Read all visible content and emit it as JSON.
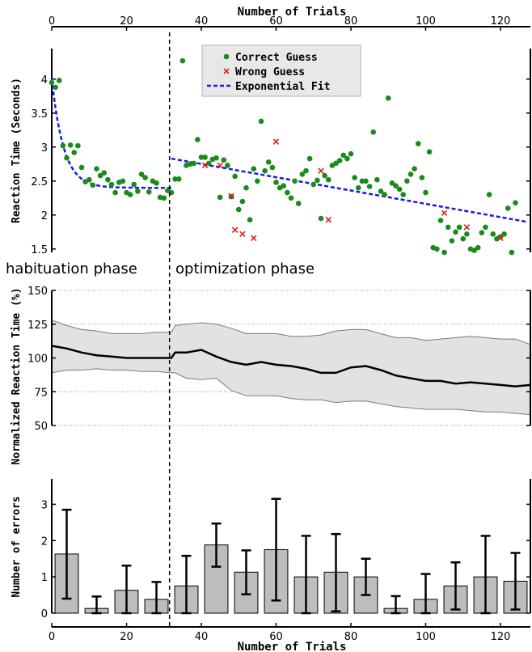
{
  "axis": {
    "top_xlabel": "Number of Trials",
    "bottom_xlabel": "Number of Trials",
    "x_ticks": [
      0,
      20,
      40,
      60,
      80,
      100,
      120
    ],
    "xlim": [
      0,
      128
    ]
  },
  "phases": {
    "habituation": "habituation phase",
    "optimization": "optimization phase",
    "boundary_trial": 31.5
  },
  "colors": {
    "correct": "#1a8a1a",
    "wrong": "#e02020",
    "fit": "#1a1ae0",
    "band": "#e2e2e2",
    "bar": "#bdbdbd"
  },
  "chart_data": [
    {
      "type": "scatter",
      "ylabel": "Reaction Time (Seconds)",
      "ylim": [
        1.45,
        4.45
      ],
      "y_ticks": [
        1.5,
        2,
        2.5,
        3,
        3.5,
        4
      ],
      "y_tick_labels": [
        "1.5",
        "2",
        "2.5",
        "3",
        "3.5",
        "4"
      ],
      "legend": {
        "position": "top-center",
        "entries": [
          "Correct Guess",
          "Wrong Guess",
          "Exponential Fit"
        ]
      },
      "correct": [
        [
          0,
          3.95
        ],
        [
          1,
          3.88
        ],
        [
          2,
          3.98
        ],
        [
          3,
          3.02
        ],
        [
          4,
          2.84
        ],
        [
          5,
          3.03
        ],
        [
          6,
          2.92
        ],
        [
          7,
          3.02
        ],
        [
          8,
          2.7
        ],
        [
          9,
          2.49
        ],
        [
          10,
          2.52
        ],
        [
          11,
          2.44
        ],
        [
          12,
          2.68
        ],
        [
          13,
          2.58
        ],
        [
          14,
          2.62
        ],
        [
          15,
          2.52
        ],
        [
          16,
          2.45
        ],
        [
          17,
          2.33
        ],
        [
          18,
          2.48
        ],
        [
          19,
          2.5
        ],
        [
          20,
          2.33
        ],
        [
          21,
          2.3
        ],
        [
          22,
          2.45
        ],
        [
          23,
          2.35
        ],
        [
          24,
          2.6
        ],
        [
          25,
          2.55
        ],
        [
          26,
          2.34
        ],
        [
          27,
          2.5
        ],
        [
          28,
          2.47
        ],
        [
          29,
          2.26
        ],
        [
          30,
          2.25
        ],
        [
          31,
          2.36
        ],
        [
          32,
          2.33
        ],
        [
          33,
          2.53
        ],
        [
          34,
          2.53
        ],
        [
          35,
          4.27
        ],
        [
          36,
          2.73
        ],
        [
          37,
          2.75
        ],
        [
          38,
          2.76
        ],
        [
          39,
          3.11
        ],
        [
          40,
          2.85
        ],
        [
          41,
          2.85
        ],
        [
          42,
          2.76
        ],
        [
          43,
          2.82
        ],
        [
          44,
          2.84
        ],
        [
          45,
          2.26
        ],
        [
          46,
          2.81
        ],
        [
          47,
          2.73
        ],
        [
          48,
          2.27
        ],
        [
          49,
          2.57
        ],
        [
          50,
          2.08
        ],
        [
          51,
          2.2
        ],
        [
          52,
          2.4
        ],
        [
          53,
          1.93
        ],
        [
          54,
          2.68
        ],
        [
          55,
          2.5
        ],
        [
          56,
          3.38
        ],
        [
          57,
          2.65
        ],
        [
          58,
          2.78
        ],
        [
          59,
          2.7
        ],
        [
          60,
          2.48
        ],
        [
          61,
          2.4
        ],
        [
          62,
          2.43
        ],
        [
          63,
          2.33
        ],
        [
          64,
          2.25
        ],
        [
          65,
          2.5
        ],
        [
          66,
          2.17
        ],
        [
          67,
          2.6
        ],
        [
          68,
          2.65
        ],
        [
          69,
          2.83
        ],
        [
          70,
          2.45
        ],
        [
          71,
          2.51
        ],
        [
          72,
          1.95
        ],
        [
          73,
          2.58
        ],
        [
          74,
          2.52
        ],
        [
          75,
          2.73
        ],
        [
          76,
          2.76
        ],
        [
          77,
          2.8
        ],
        [
          78,
          2.88
        ],
        [
          79,
          2.83
        ],
        [
          80,
          2.9
        ],
        [
          81,
          2.55
        ],
        [
          82,
          2.4
        ],
        [
          83,
          2.5
        ],
        [
          84,
          2.5
        ],
        [
          85,
          2.42
        ],
        [
          86,
          3.22
        ],
        [
          87,
          2.52
        ],
        [
          88,
          2.35
        ],
        [
          89,
          2.3
        ],
        [
          90,
          3.72
        ],
        [
          91,
          2.47
        ],
        [
          92,
          2.43
        ],
        [
          93,
          2.38
        ],
        [
          94,
          2.3
        ],
        [
          95,
          2.5
        ],
        [
          96,
          2.6
        ],
        [
          97,
          2.68
        ],
        [
          98,
          3.05
        ],
        [
          99,
          2.55
        ],
        [
          100,
          2.33
        ],
        [
          101,
          2.93
        ],
        [
          102,
          1.52
        ],
        [
          103,
          1.5
        ],
        [
          104,
          1.92
        ],
        [
          105,
          1.45
        ],
        [
          106,
          1.82
        ],
        [
          107,
          1.62
        ],
        [
          108,
          1.75
        ],
        [
          109,
          1.82
        ],
        [
          110,
          1.65
        ],
        [
          111,
          1.72
        ],
        [
          112,
          1.5
        ],
        [
          113,
          1.48
        ],
        [
          114,
          1.52
        ],
        [
          115,
          1.74
        ],
        [
          116,
          1.82
        ],
        [
          117,
          2.3
        ],
        [
          118,
          1.72
        ],
        [
          119,
          1.65
        ],
        [
          120,
          1.68
        ],
        [
          121,
          1.72
        ],
        [
          122,
          2.1
        ],
        [
          123,
          1.45
        ],
        [
          124,
          2.18
        ]
      ],
      "wrong": [
        [
          41,
          2.73
        ],
        [
          45,
          2.73
        ],
        [
          48,
          2.28
        ],
        [
          49,
          1.78
        ],
        [
          51,
          1.72
        ],
        [
          54,
          1.66
        ],
        [
          60,
          3.08
        ],
        [
          72,
          2.65
        ],
        [
          74,
          1.93
        ],
        [
          105,
          2.03
        ],
        [
          111,
          1.82
        ],
        [
          120,
          1.66
        ]
      ],
      "fit_habituation": {
        "x": [
          0,
          32
        ],
        "a": 1.61,
        "tau": 3.2,
        "c": 2.4
      },
      "fit_optimization": {
        "x": [
          32,
          127
        ],
        "y": [
          2.83,
          1.9
        ]
      }
    },
    {
      "type": "area",
      "ylabel": "Normalized Reaction Time (%)",
      "ylim": [
        50,
        150
      ],
      "y_ticks": [
        50,
        75,
        100,
        125,
        150
      ],
      "y_tick_labels": [
        "50",
        "75",
        "100",
        "125",
        "150"
      ],
      "grid": true,
      "x": [
        0,
        4,
        8,
        12,
        16,
        20,
        24,
        28,
        32,
        33,
        36,
        40,
        44,
        48,
        52,
        56,
        60,
        64,
        68,
        72,
        76,
        80,
        84,
        88,
        92,
        96,
        100,
        104,
        108,
        112,
        116,
        120,
        124,
        128
      ],
      "mean": [
        109,
        107,
        104,
        102,
        101,
        100,
        100,
        100,
        100,
        104,
        104,
        106,
        101,
        97,
        95,
        97,
        95,
        94,
        92,
        89,
        89,
        93,
        94,
        91,
        87,
        85,
        83,
        83,
        81,
        82,
        81,
        80,
        79,
        80
      ],
      "upper": [
        128,
        124,
        121,
        120,
        118,
        118,
        118,
        119,
        119,
        124,
        125,
        126,
        125,
        122,
        118,
        118,
        118,
        116,
        116,
        117,
        120,
        121,
        121,
        118,
        115,
        115,
        113,
        114,
        115,
        116,
        115,
        114,
        114,
        110
      ],
      "lower": [
        89,
        91,
        91,
        92,
        91,
        91,
        90,
        90,
        89,
        89,
        85,
        84,
        85,
        76,
        72,
        72,
        72,
        70,
        69,
        69,
        67,
        68,
        68,
        66,
        64,
        63,
        62,
        62,
        62,
        61,
        60,
        60,
        59,
        58
      ]
    },
    {
      "type": "bar",
      "ylabel": "Number of errors",
      "ylim": [
        0,
        3.7
      ],
      "y_ticks": [
        0,
        1,
        2,
        3
      ],
      "y_tick_labels": [
        "0",
        "1",
        "2",
        "3"
      ],
      "x": [
        4,
        12,
        20,
        28,
        36,
        44,
        52,
        60,
        68,
        76,
        84,
        92,
        100,
        108,
        116,
        124
      ],
      "values": [
        1.63,
        0.13,
        0.63,
        0.38,
        0.75,
        1.88,
        1.13,
        1.75,
        1.0,
        1.13,
        1.0,
        0.13,
        0.38,
        0.75,
        1.0,
        0.88
      ],
      "err_low": [
        0.4,
        0.0,
        0.0,
        0.0,
        0.0,
        1.28,
        0.52,
        0.35,
        0.0,
        0.05,
        0.5,
        0.0,
        0.0,
        0.1,
        0.0,
        0.1
      ],
      "err_high": [
        2.85,
        0.46,
        1.31,
        0.86,
        1.58,
        2.47,
        1.73,
        3.15,
        2.13,
        2.18,
        1.5,
        0.47,
        1.08,
        1.4,
        2.13,
        1.66
      ]
    }
  ]
}
